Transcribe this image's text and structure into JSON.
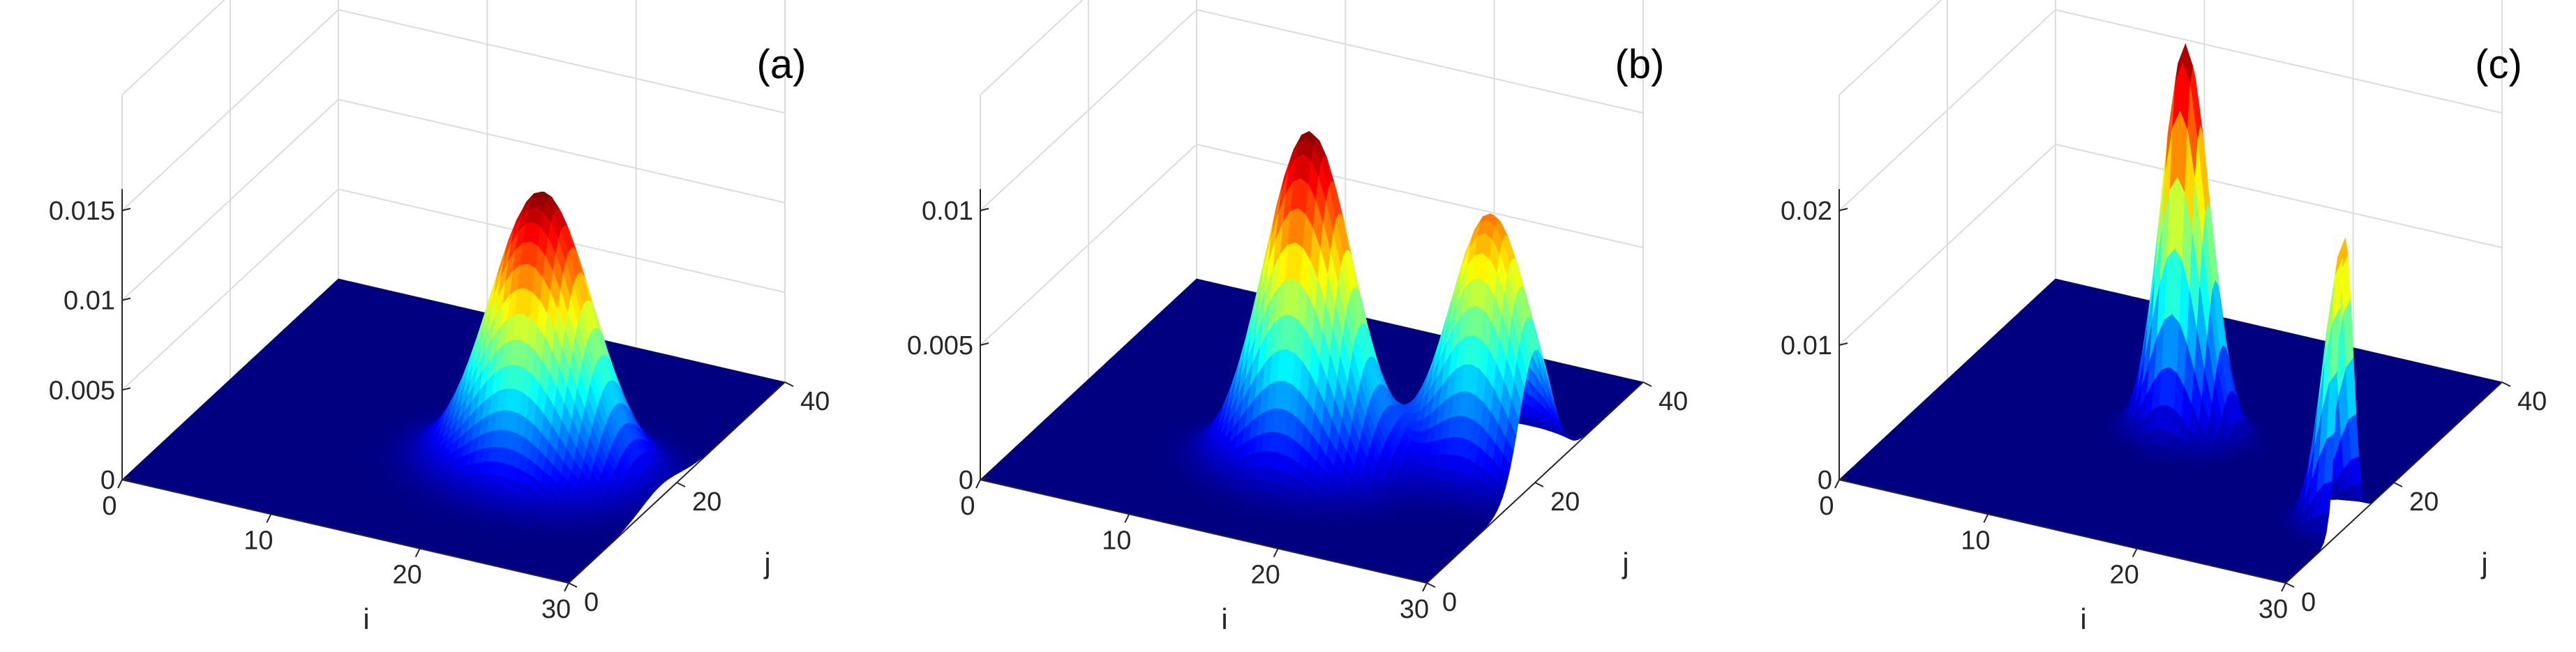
{
  "chart_data": [
    {
      "type": "surface",
      "title": "(a)",
      "xlabel": "i",
      "ylabel": "j",
      "zlabel": "",
      "xlim": [
        0,
        30
      ],
      "ylim": [
        0,
        40
      ],
      "zlim": [
        0,
        0.015
      ],
      "xticks": [
        0,
        10,
        20,
        30
      ],
      "yticks": [
        0,
        20,
        40
      ],
      "zticks": [
        0,
        0.005,
        0.01,
        0.015
      ],
      "xtick_labels": [
        "0",
        "10",
        "20",
        "30"
      ],
      "ytick_labels": [
        "0",
        "20",
        "40"
      ],
      "ztick_labels": [
        "0",
        "0.005",
        "0.01",
        "0.015"
      ],
      "colormap": "jet",
      "grid": true,
      "peaks": [
        {
          "i": 22,
          "j": 17,
          "height": 0.0155,
          "sigma_i": 3.2,
          "sigma_j": 3.6
        }
      ]
    },
    {
      "type": "surface",
      "title": "(b)",
      "xlabel": "i",
      "ylabel": "j",
      "zlabel": "",
      "xlim": [
        0,
        30
      ],
      "ylim": [
        0,
        40
      ],
      "zlim": [
        0,
        0.01
      ],
      "xticks": [
        0,
        10,
        20,
        30
      ],
      "yticks": [
        0,
        20,
        40
      ],
      "zticks": [
        0,
        0.005,
        0.01
      ],
      "xtick_labels": [
        "0",
        "10",
        "20",
        "30"
      ],
      "ytick_labels": [
        "0",
        "20",
        "40"
      ],
      "ztick_labels": [
        "0",
        "0.005",
        "0.01"
      ],
      "colormap": "jet",
      "grid": true,
      "peaks": [
        {
          "i": 17,
          "j": 14,
          "height": 0.0125,
          "sigma_i": 2.8,
          "sigma_j": 3.0
        },
        {
          "i": 27,
          "j": 20,
          "height": 0.0096,
          "sigma_i": 2.6,
          "sigma_j": 2.9
        }
      ]
    },
    {
      "type": "surface",
      "title": "(c)",
      "xlabel": "i",
      "ylabel": "j",
      "zlabel": "",
      "xlim": [
        0,
        30
      ],
      "ylim": [
        0,
        40
      ],
      "zlim": [
        0,
        0.02
      ],
      "xticks": [
        0,
        10,
        20,
        30
      ],
      "yticks": [
        0,
        20,
        40
      ],
      "zticks": [
        0,
        0.01,
        0.02
      ],
      "xtick_labels": [
        "0",
        "10",
        "20",
        "30"
      ],
      "ytick_labels": [
        "0",
        "20",
        "40"
      ],
      "ztick_labels": [
        "0",
        "0.01",
        "0.02"
      ],
      "colormap": "jet",
      "grid": true,
      "peaks": [
        {
          "i": 16,
          "j": 20,
          "height": 0.029,
          "sigma_i": 1.5,
          "sigma_j": 1.7
        },
        {
          "i": 30,
          "j": 11,
          "height": 0.0215,
          "sigma_i": 1.3,
          "sigma_j": 1.4
        }
      ]
    }
  ],
  "colors": {
    "background": "#ffffff",
    "axis": "#262626",
    "grid": "#dcdcdc",
    "floor": "#00007f"
  }
}
